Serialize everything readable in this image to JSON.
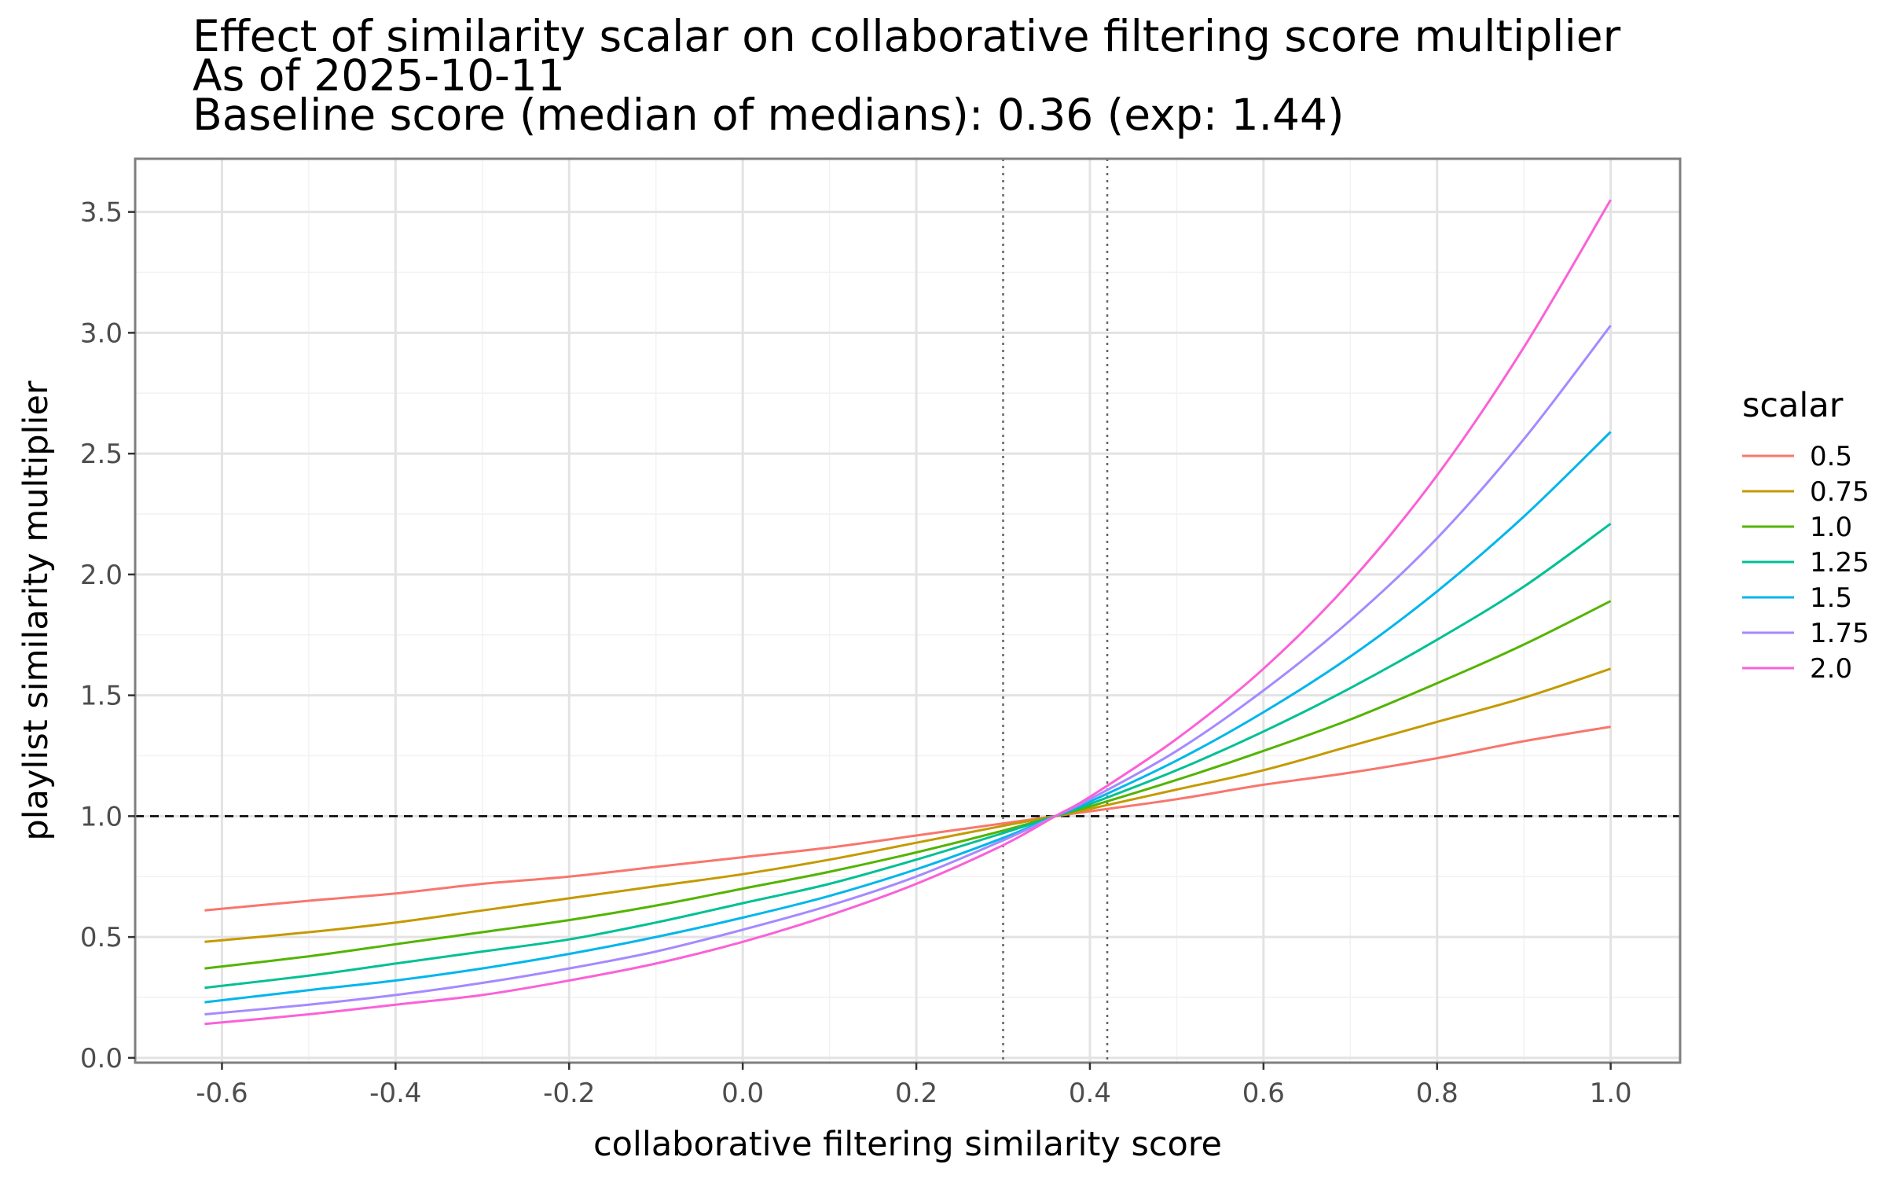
{
  "chart_data": {
    "type": "line",
    "title": [
      "Effect of similarity scalar on collaborative filtering score multiplier",
      "As of 2025-10-11",
      "Baseline score (median of medians): 0.36 (exp: 1.44)"
    ],
    "xlabel": "collaborative filtering similarity score",
    "ylabel": "playlist similarity multiplier",
    "xlim": [
      -0.7,
      1.08
    ],
    "ylim": [
      -0.02,
      3.72
    ],
    "x_ticks": [
      {
        "value": -0.6,
        "label": "-0.6"
      },
      {
        "value": -0.4,
        "label": "-0.4"
      },
      {
        "value": -0.2,
        "label": "-0.2"
      },
      {
        "value": 0.0,
        "label": "0.0"
      },
      {
        "value": 0.2,
        "label": "0.2"
      },
      {
        "value": 0.4,
        "label": "0.4"
      },
      {
        "value": 0.6,
        "label": "0.6"
      },
      {
        "value": 0.8,
        "label": "0.8"
      },
      {
        "value": 1.0,
        "label": "1.0"
      }
    ],
    "y_ticks": [
      {
        "value": 0.0,
        "label": "0.0"
      },
      {
        "value": 0.5,
        "label": "0.5"
      },
      {
        "value": 1.0,
        "label": "1.0"
      },
      {
        "value": 1.5,
        "label": "1.5"
      },
      {
        "value": 2.0,
        "label": "2.0"
      },
      {
        "value": 2.5,
        "label": "2.5"
      },
      {
        "value": 3.0,
        "label": "3.0"
      },
      {
        "value": 3.5,
        "label": "3.5"
      }
    ],
    "grid": true,
    "reference_lines": {
      "horizontal_dashed_y": 1.0,
      "vertical_dotted_x": [
        0.3,
        0.42
      ]
    },
    "legend": {
      "title": "scalar",
      "placement": "right"
    },
    "x": [
      -0.62,
      -0.5,
      -0.4,
      -0.3,
      -0.2,
      -0.1,
      0.0,
      0.1,
      0.2,
      0.3,
      0.36,
      0.4,
      0.5,
      0.6,
      0.7,
      0.8,
      0.9,
      1.0
    ],
    "series": [
      {
        "name": "0.5",
        "color": "#F8766D",
        "values": [
          0.61,
          0.65,
          0.68,
          0.72,
          0.75,
          0.79,
          0.83,
          0.87,
          0.92,
          0.97,
          1.0,
          1.02,
          1.07,
          1.13,
          1.18,
          1.24,
          1.31,
          1.37
        ]
      },
      {
        "name": "0.75",
        "color": "#C49A00",
        "values": [
          0.48,
          0.52,
          0.56,
          0.61,
          0.66,
          0.71,
          0.76,
          0.82,
          0.89,
          0.96,
          1.0,
          1.03,
          1.11,
          1.19,
          1.29,
          1.39,
          1.49,
          1.61
        ]
      },
      {
        "name": "1.0",
        "color": "#53B400",
        "values": [
          0.37,
          0.42,
          0.47,
          0.52,
          0.57,
          0.63,
          0.7,
          0.77,
          0.85,
          0.94,
          1.0,
          1.04,
          1.15,
          1.27,
          1.4,
          1.55,
          1.71,
          1.89
        ]
      },
      {
        "name": "1.25",
        "color": "#00C094",
        "values": [
          0.29,
          0.34,
          0.39,
          0.44,
          0.49,
          0.56,
          0.64,
          0.72,
          0.82,
          0.93,
          1.0,
          1.05,
          1.19,
          1.35,
          1.53,
          1.73,
          1.95,
          2.21
        ]
      },
      {
        "name": "1.5",
        "color": "#00B6EB",
        "values": [
          0.23,
          0.28,
          0.32,
          0.37,
          0.43,
          0.5,
          0.58,
          0.67,
          0.78,
          0.91,
          1.0,
          1.06,
          1.23,
          1.43,
          1.66,
          1.93,
          2.24,
          2.59
        ]
      },
      {
        "name": "1.75",
        "color": "#A58AFF",
        "values": [
          0.18,
          0.22,
          0.26,
          0.31,
          0.37,
          0.44,
          0.53,
          0.63,
          0.75,
          0.9,
          1.0,
          1.07,
          1.27,
          1.52,
          1.81,
          2.15,
          2.56,
          3.03
        ]
      },
      {
        "name": "2.0",
        "color": "#FB61D7",
        "values": [
          0.14,
          0.18,
          0.22,
          0.26,
          0.32,
          0.39,
          0.48,
          0.59,
          0.72,
          0.88,
          1.0,
          1.08,
          1.32,
          1.61,
          1.97,
          2.41,
          2.94,
          3.55
        ]
      }
    ]
  }
}
